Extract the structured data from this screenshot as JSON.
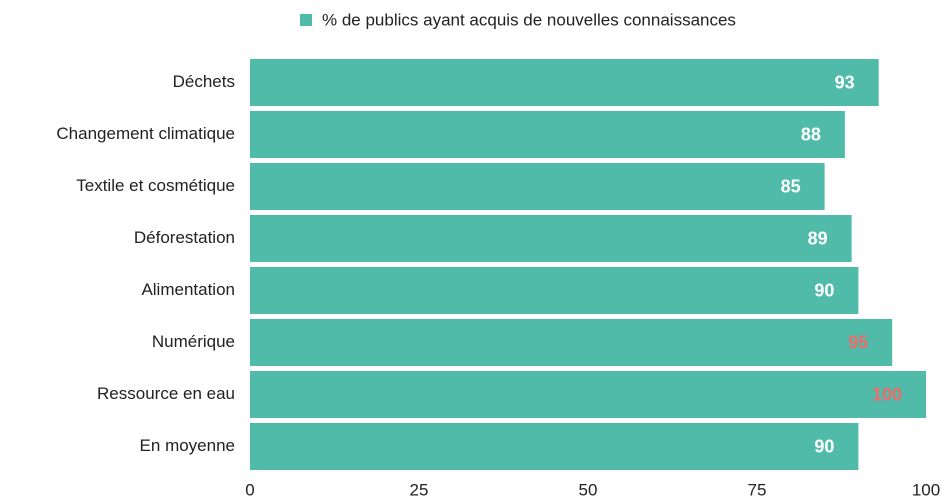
{
  "chart_data": {
    "type": "bar",
    "orientation": "horizontal",
    "categories": [
      "Déchets",
      "Changement climatique",
      "Textile et cosmétique",
      "Déforestation",
      "Alimentation",
      "Numérique",
      "Ressource en eau",
      "En moyenne"
    ],
    "series": [
      {
        "name": "% de publics ayant acquis de nouvelles connaissances",
        "color": "#50bba9",
        "values": [
          93,
          88,
          85,
          89,
          90,
          95,
          100,
          90
        ],
        "label_colors": [
          "#ffffff",
          "#ffffff",
          "#ffffff",
          "#ffffff",
          "#ffffff",
          "#f06a6a",
          "#f06a6a",
          "#ffffff"
        ]
      }
    ],
    "xlim": [
      0,
      100
    ],
    "xticks": [
      0,
      25,
      50,
      75,
      100
    ],
    "grid": false,
    "legend": "top"
  }
}
